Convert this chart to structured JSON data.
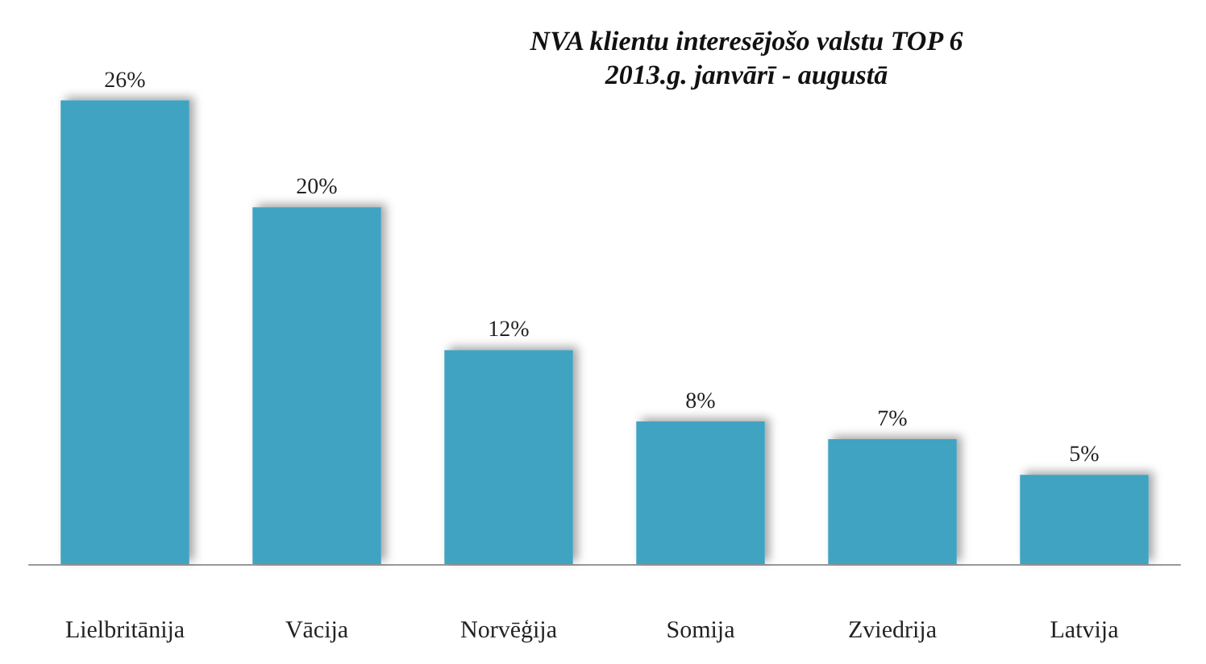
{
  "chart_data": {
    "type": "bar",
    "title": "NVA klientu interesējošo valstu TOP 6",
    "subtitle": "2013.g. janvārī - augustā",
    "categories": [
      "Lielbritānija",
      "Vācija",
      "Norvēģija",
      "Somija",
      "Zviedrija",
      "Latvija"
    ],
    "values": [
      26,
      20,
      12,
      8,
      7,
      5
    ],
    "value_labels": [
      "26%",
      "20%",
      "12%",
      "8%",
      "7%",
      "5%"
    ],
    "color": "#3fa3c1"
  }
}
